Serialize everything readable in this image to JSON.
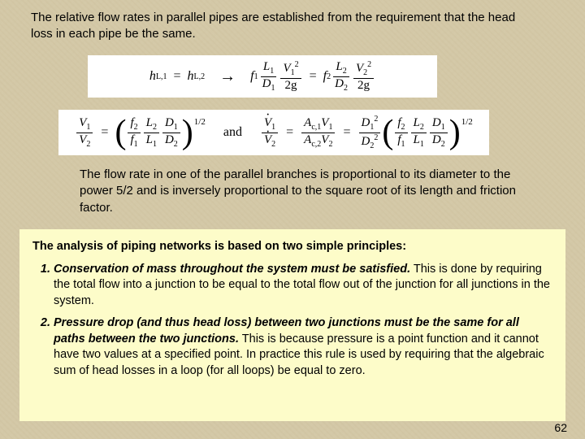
{
  "page": {
    "number": "62",
    "background_color": "#d4c9a8",
    "yellow_box_color": "#fdfcc9",
    "text_color": "#000000",
    "body_fontsize": 15,
    "footer_fontsize": 14
  },
  "intro_text": "The relative flow rates in parallel pipes are established from the requirement that the head loss in each pipe be the same.",
  "equations": {
    "eq1": {
      "lhs_a": "h",
      "lhs_a_sub": "L,1",
      "lhs_b": "h",
      "lhs_b_sub": "L,2",
      "arrow": "→",
      "r1_f": "f",
      "r1_fsub": "1",
      "r1_Lnum": "L",
      "r1_Lnum_sub": "1",
      "r1_Lden": "D",
      "r1_Lden_sub": "1",
      "r1_Vnum": "V",
      "r1_Vnum_sub": "1",
      "r1_Vnum_sup": "2",
      "r1_Vden": "2g",
      "r2_f": "f",
      "r2_fsub": "2",
      "r2_Lnum": "L",
      "r2_Lnum_sub": "2",
      "r2_Lden": "D",
      "r2_Lden_sub": "2",
      "r2_Vnum": "V",
      "r2_Vnum_sub": "2",
      "r2_Vnum_sup": "2",
      "r2_Vden": "2g"
    },
    "eq2": {
      "l_num": "V",
      "l_num_sub": "1",
      "l_den": "V",
      "l_den_sub": "2",
      "p1_num": "f",
      "p1_num_sub": "2",
      "p1_den": "f",
      "p1_den_sub": "1",
      "p2_num": "L",
      "p2_num_sub": "2",
      "p2_den": "L",
      "p2_den_sub": "1",
      "p3_num": "D",
      "p3_num_sub": "1",
      "p3_den": "D",
      "p3_den_sub": "2",
      "power": "1/2",
      "and_word": "and",
      "r_num": "V",
      "r_num_sub": "1",
      "r_den": "V",
      "r_den_sub": "2",
      "A1_num": "A",
      "A1_num_sub": "c,1",
      "A1_num_v": "V",
      "A1_num_vsub": "1",
      "A1_den": "A",
      "A1_den_sub": "c,2",
      "A1_den_v": "V",
      "A1_den_vsub": "2",
      "D_num": "D",
      "D_num_sub": "1",
      "D_num_sup": "2",
      "D_den": "D",
      "D_den_sub": "2",
      "D_den_sup": "2"
    }
  },
  "mid_text": "The flow rate in one of the parallel branches is proportional to its diameter to the power 5/2 and is inversely proportional to the square root of its length and friction factor.",
  "principles": {
    "heading": "The analysis of piping networks is based on two simple principles:",
    "items": [
      {
        "lead": "Conservation of mass throughout the system must be satisfied.",
        "body": " This is done by requiring the total flow into a junction to be equal to the total flow out of the junction for all junctions in the system."
      },
      {
        "lead": "Pressure drop (and thus head loss) between two junctions must be the same for all paths between the two junctions.",
        "body": " This is because pressure is a point function and it cannot have two values at a specified point. In practice this rule is used by requiring that the algebraic sum of head losses in a loop (for all loops) be equal to zero."
      }
    ]
  }
}
